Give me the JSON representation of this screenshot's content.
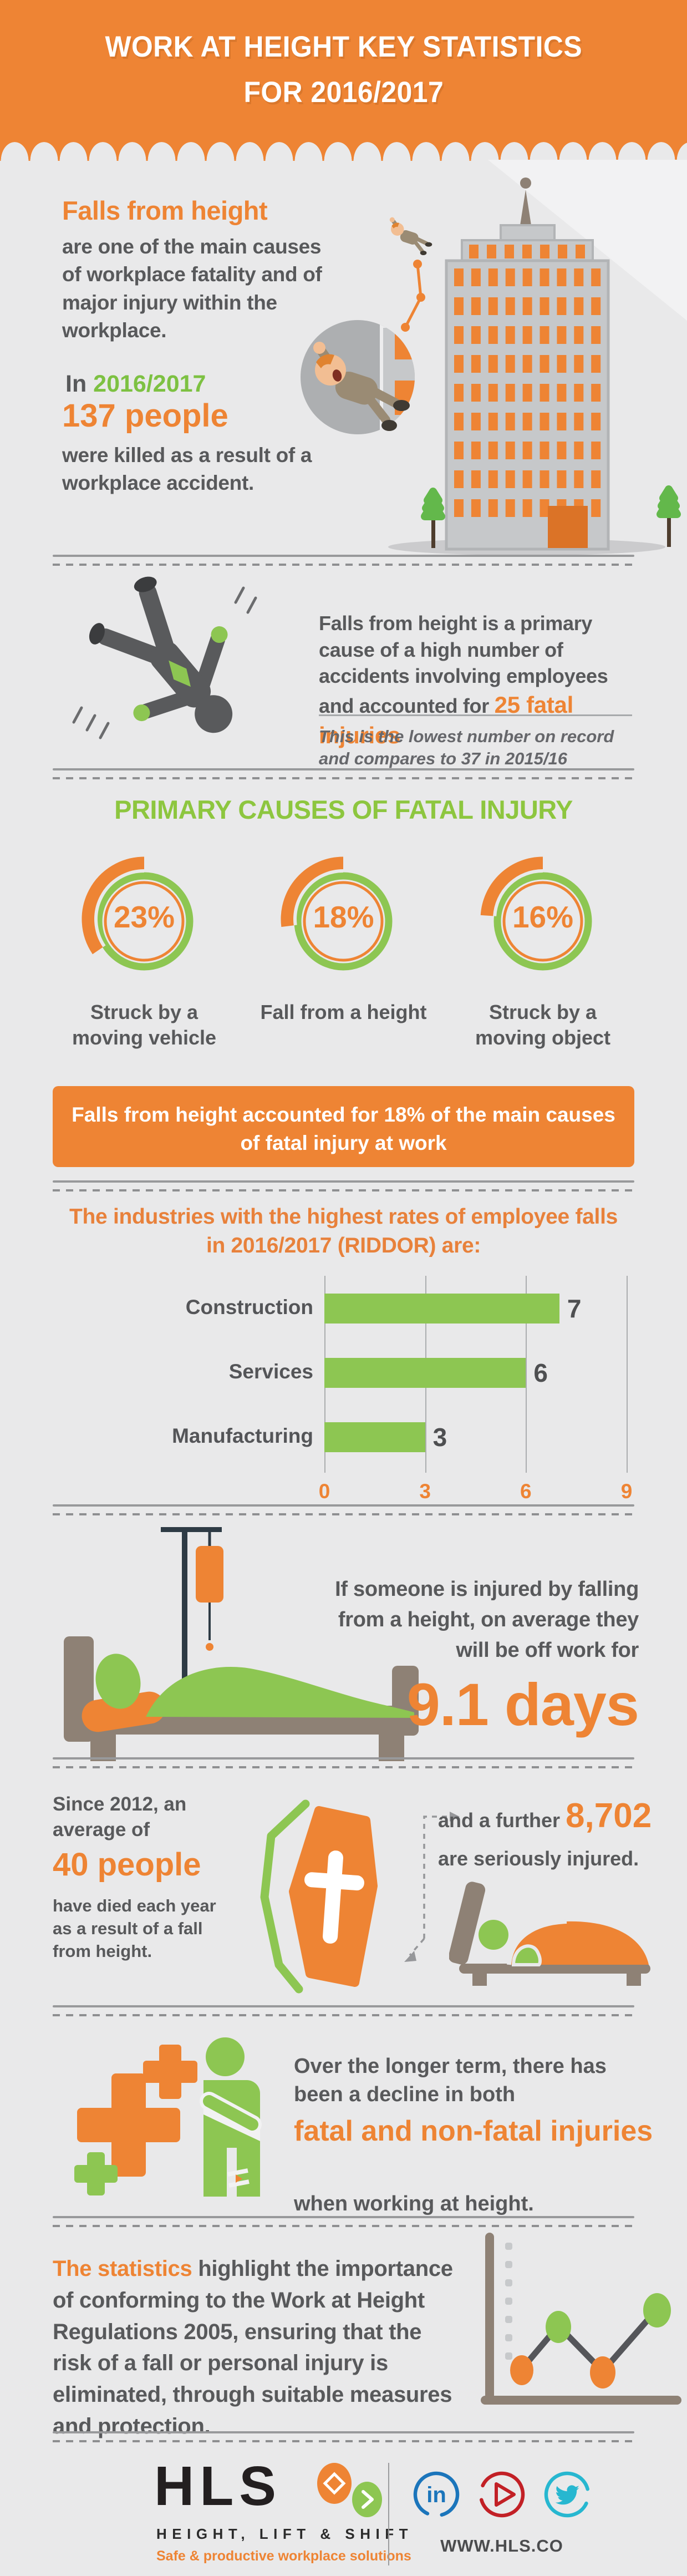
{
  "colors": {
    "orange": "#EE8434",
    "green": "#8DC652",
    "lime_title": "#8DC63F",
    "text_gray": "#58595B",
    "background": "#E9E9EA",
    "taupe": "#8E8175",
    "navy": "#2E3B45",
    "linkedin_blue": "#1B75BB",
    "youtube_red": "#C22026",
    "twitter_cyan": "#27B7D0"
  },
  "header": {
    "title_line1": "WORK AT HEIGHT KEY STATISTICS",
    "title_line2": "FOR 2016/2017"
  },
  "intro": {
    "heading": "Falls from height",
    "paragraph": "are one of the main causes of workplace fatality and of major injury within the workplace.",
    "in_word": "In",
    "year": "2016/2017",
    "count": "137 people",
    "tail": "were killed as a result of a workplace accident."
  },
  "fatal25": {
    "lead": "Falls from height is a primary cause of a high number of accidents involving employees and accounted for ",
    "highlight": "25 fatal injuries",
    "note": "This is the lowest number on record and compares to 37 in 2015/16"
  },
  "causes": {
    "title": "PRIMARY CAUSES OF FATAL INJURY",
    "banner_line1": "Falls from height accounted for 18% of the main causes",
    "banner_line2": "of fatal injury at work"
  },
  "industries": {
    "heading_line1": "The industries with the highest rates of employee falls",
    "heading_line2": "in 2016/2017 (RIDDOR) are:"
  },
  "offwork": {
    "lead": "If someone is injured by falling from a height, on average they will be off work for",
    "days": "9.1 days"
  },
  "since2012": {
    "pre": "Since 2012, an average of",
    "count": "40 people",
    "post": "have died each year as a result of a fall from height.",
    "further_pre": "and a further ",
    "further_count": "8,702",
    "further_post": "are seriously injured."
  },
  "decline": {
    "pre": "Over the longer term, there has been a decline in both",
    "highlight": "fatal and non-fatal injuries",
    "post": "when working at height."
  },
  "statistics": {
    "highlight": "The statistics",
    "rest": " highlight the importance of conforming to the Work at Height Regulations 2005, ensuring that the risk of a fall or personal injury is eliminated, through suitable measures and protection."
  },
  "footer": {
    "logo": "HLS",
    "logo_sub": "HEIGHT, LIFT & SHIFT",
    "tagline": "Safe & productive workplace solutions",
    "url": "WWW.HLS.CO",
    "social": [
      "linkedin",
      "youtube",
      "twitter"
    ]
  },
  "chart_data": [
    {
      "type": "bar",
      "orientation": "horizontal",
      "title": "The industries with the highest rates of employee falls in 2016/2017 (RIDDOR) are:",
      "categories": [
        "Construction",
        "Services",
        "Manufacturing"
      ],
      "values": [
        7,
        6,
        3
      ],
      "xlabel": "",
      "ylabel": "",
      "xlim": [
        0,
        9
      ],
      "xticks": [
        0,
        3,
        6,
        9
      ],
      "bar_color": "#8DC652",
      "grid": true,
      "legend": false
    },
    {
      "type": "donut",
      "title": "PRIMARY CAUSES OF FATAL INJURY",
      "segments": [
        {
          "label": "Struck by a moving vehicle",
          "value": 23,
          "unit": "%"
        },
        {
          "label": "Fall from a height",
          "value": 18,
          "unit": "%"
        },
        {
          "label": "Struck by a moving object",
          "value": 16,
          "unit": "%"
        }
      ],
      "ring_color": "#8DC652",
      "arc_color": "#EE8434",
      "value_color": "#EE8434"
    }
  ]
}
